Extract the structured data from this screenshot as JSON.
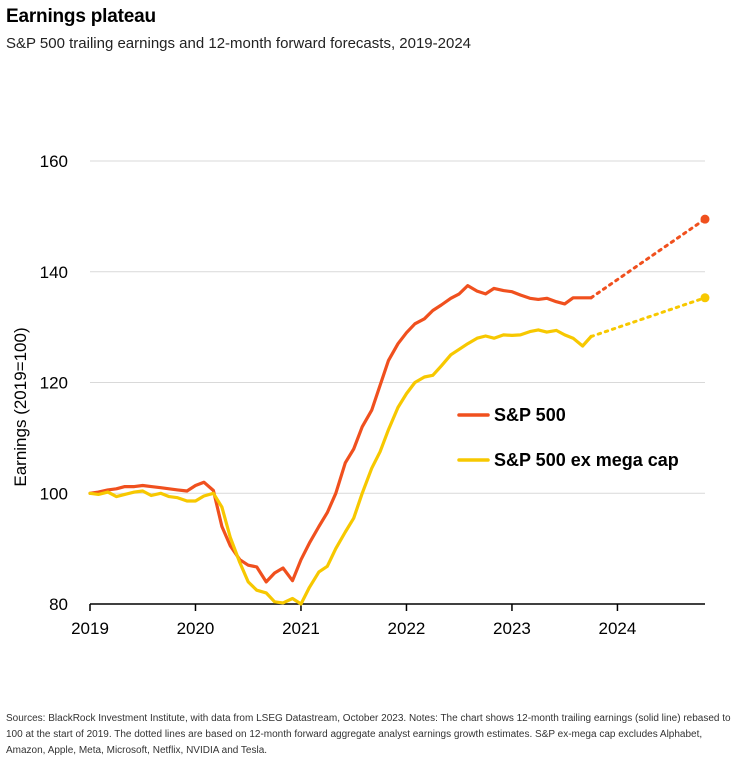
{
  "title": "Earnings plateau",
  "subtitle": "S&P 500 trailing earnings and 12-month forward forecasts, 2019-2024",
  "source": "Sources: BlackRock Investment Institute, with data from LSEG Datastream, October 2023. Notes: The chart shows 12-month trailing earnings (solid line) rebased to 100 at the start of 2019. The dotted lines are based on 12-month forward aggregate analyst earnings growth estimates. S&P ex-mega cap excludes Alphabet, Amazon, Apple, Meta, Microsoft, Netflix, NVIDIA and Tesla.",
  "chart_data": {
    "type": "line",
    "title": "Earnings plateau",
    "subtitle": "S&P 500 trailing earnings and 12-month forward forecasts, 2019-2024",
    "xlabel": "",
    "ylabel": "Earnings (2019=100)",
    "xlim": [
      2019.0,
      2024.83
    ],
    "ylim": [
      80,
      160
    ],
    "yticks": [
      80,
      100,
      120,
      140,
      160
    ],
    "xticks": [
      "2019",
      "2020",
      "2021",
      "2022",
      "2023",
      "2024"
    ],
    "grid": "horizontal",
    "legend_position": "right",
    "series": [
      {
        "name": "S&P 500",
        "color": "#f0501e",
        "x": [
          2019.0,
          2019.08,
          2019.17,
          2019.25,
          2019.33,
          2019.42,
          2019.5,
          2019.58,
          2019.67,
          2019.75,
          2019.83,
          2019.92,
          2020.0,
          2020.08,
          2020.17,
          2020.25,
          2020.33,
          2020.42,
          2020.5,
          2020.58,
          2020.67,
          2020.75,
          2020.83,
          2020.92,
          2021.0,
          2021.08,
          2021.17,
          2021.25,
          2021.33,
          2021.42,
          2021.5,
          2021.58,
          2021.67,
          2021.75,
          2021.83,
          2021.92,
          2022.0,
          2022.08,
          2022.17,
          2022.25,
          2022.33,
          2022.42,
          2022.5,
          2022.58,
          2022.67,
          2022.75,
          2022.83,
          2022.92,
          2023.0,
          2023.08,
          2023.17,
          2023.25,
          2023.33,
          2023.42,
          2023.5,
          2023.58,
          2023.67,
          2023.75
        ],
        "values": [
          100,
          100.2,
          100.6,
          100.8,
          101.2,
          101.2,
          101.4,
          101.2,
          101.0,
          100.8,
          100.6,
          100.4,
          101.4,
          102.0,
          100.5,
          94,
          90.5,
          88,
          87,
          86.7,
          84,
          85.6,
          86.5,
          84.2,
          88,
          91,
          94,
          96.5,
          100,
          105.5,
          108,
          112,
          115,
          119.5,
          124,
          127,
          129,
          130.6,
          131.5,
          133,
          134,
          135.2,
          136,
          137.5,
          136.5,
          136,
          137,
          136.6,
          136.4,
          135.8,
          135.2,
          135,
          135.2,
          134.6,
          134.2,
          135.3,
          135.3,
          135.3
        ],
        "forecast": {
          "x": [
            2023.75,
            2024.83
          ],
          "values": [
            135.3,
            149.5
          ]
        }
      },
      {
        "name": "S&P 500 ex mega cap",
        "color": "#f7c800",
        "x": [
          2019.0,
          2019.08,
          2019.17,
          2019.25,
          2019.33,
          2019.42,
          2019.5,
          2019.58,
          2019.67,
          2019.75,
          2019.83,
          2019.92,
          2020.0,
          2020.08,
          2020.17,
          2020.25,
          2020.33,
          2020.42,
          2020.5,
          2020.58,
          2020.67,
          2020.75,
          2020.83,
          2020.92,
          2021.0,
          2021.08,
          2021.17,
          2021.25,
          2021.33,
          2021.42,
          2021.5,
          2021.58,
          2021.67,
          2021.75,
          2021.83,
          2021.92,
          2022.0,
          2022.08,
          2022.17,
          2022.25,
          2022.33,
          2022.42,
          2022.5,
          2022.58,
          2022.67,
          2022.75,
          2022.83,
          2022.92,
          2023.0,
          2023.08,
          2023.17,
          2023.25,
          2023.33,
          2023.42,
          2023.5,
          2023.58,
          2023.67,
          2023.75
        ],
        "values": [
          100,
          99.8,
          100.2,
          99.4,
          99.8,
          100.2,
          100.4,
          99.6,
          100,
          99.4,
          99.2,
          98.6,
          98.6,
          99.5,
          100,
          97.5,
          92,
          87.5,
          84,
          82.5,
          82,
          80.4,
          80.2,
          81,
          80,
          83,
          85.8,
          86.8,
          90,
          93,
          95.5,
          100,
          104.5,
          107.5,
          111.5,
          115.5,
          118,
          120,
          121,
          121.3,
          123,
          125,
          126,
          127,
          128,
          128.4,
          128,
          128.6,
          128.5,
          128.6,
          129.2,
          129.5,
          129.1,
          129.4,
          128.6,
          128.0,
          126.6,
          128.3
        ],
        "forecast": {
          "x": [
            2023.75,
            2024.83
          ],
          "values": [
            128.3,
            135.3
          ]
        }
      }
    ]
  }
}
